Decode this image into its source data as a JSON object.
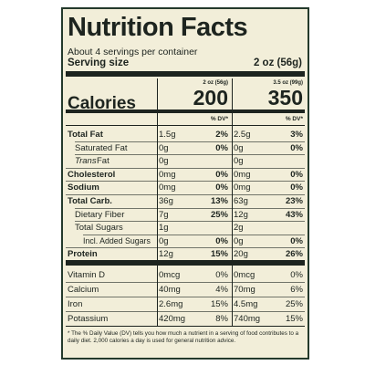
{
  "header": {
    "title": "Nutrition Facts",
    "servings": "About 4 servings per container",
    "serving_size_label": "Serving size",
    "serving_size": "2 oz (56g)"
  },
  "calories_label": "Calories",
  "columns": [
    {
      "size": "2 oz (56g)",
      "calories": "200",
      "dv_label": "% DV*"
    },
    {
      "size": "3.5 oz (99g)",
      "calories": "350",
      "dv_label": "% DV*"
    }
  ],
  "nutrients": [
    {
      "name": "Total Fat",
      "style": "bold",
      "amounts": [
        "1.5g",
        "2.5g"
      ],
      "dv": [
        "2%",
        "3%"
      ]
    },
    {
      "name": "Saturated Fat",
      "style": "indent",
      "amounts": [
        "0g",
        "0g"
      ],
      "dv": [
        "0%",
        "0%"
      ]
    },
    {
      "prefix_italic": "Trans",
      "name": "Fat",
      "style": "indent",
      "amounts": [
        "0g",
        "0g"
      ]
    },
    {
      "name": "Cholesterol",
      "style": "bold",
      "amounts": [
        "0mg",
        "0mg"
      ],
      "dv": [
        "0%",
        "0%"
      ]
    },
    {
      "name": "Sodium",
      "style": "bold",
      "amounts": [
        "0mg",
        "0mg"
      ],
      "dv": [
        "0%",
        "0%"
      ]
    },
    {
      "name": "Total Carb.",
      "style": "bold",
      "amounts": [
        "36g",
        "63g"
      ],
      "dv": [
        "13%",
        "23%"
      ]
    },
    {
      "name": "Dietary Fiber",
      "style": "indent",
      "amounts": [
        "7g",
        "12g"
      ],
      "dv": [
        "25%",
        "43%"
      ]
    },
    {
      "name": "Total Sugars",
      "style": "indent",
      "amounts": [
        "1g",
        "2g"
      ]
    },
    {
      "name": "Incl. Added Sugars",
      "style": "indent2",
      "amounts": [
        "0g",
        "0g"
      ],
      "dv": [
        "0%",
        "0%"
      ]
    },
    {
      "name": "Protein",
      "style": "bold",
      "amounts": [
        "12g",
        "20g"
      ],
      "dv": [
        "15%",
        "26%"
      ]
    }
  ],
  "vitamins": [
    {
      "name": "Vitamin D",
      "amounts": [
        "0mcg",
        "0mcg"
      ],
      "dv": [
        "0%",
        "0%"
      ]
    },
    {
      "name": "Calcium",
      "amounts": [
        "40mg",
        "70mg"
      ],
      "dv": [
        "4%",
        "6%"
      ]
    },
    {
      "name": "Iron",
      "amounts": [
        "2.6mg",
        "4.5mg"
      ],
      "dv": [
        "15%",
        "25%"
      ]
    },
    {
      "name": "Potassium",
      "amounts": [
        "420mg",
        "740mg"
      ],
      "dv": [
        "8%",
        "15%"
      ]
    }
  ],
  "footnote": "* The % Daily Value (DV) tells you how much a nutrient in a serving of food contributes to a daily diet. 2,000 calories a day is used for general nutrition advice."
}
